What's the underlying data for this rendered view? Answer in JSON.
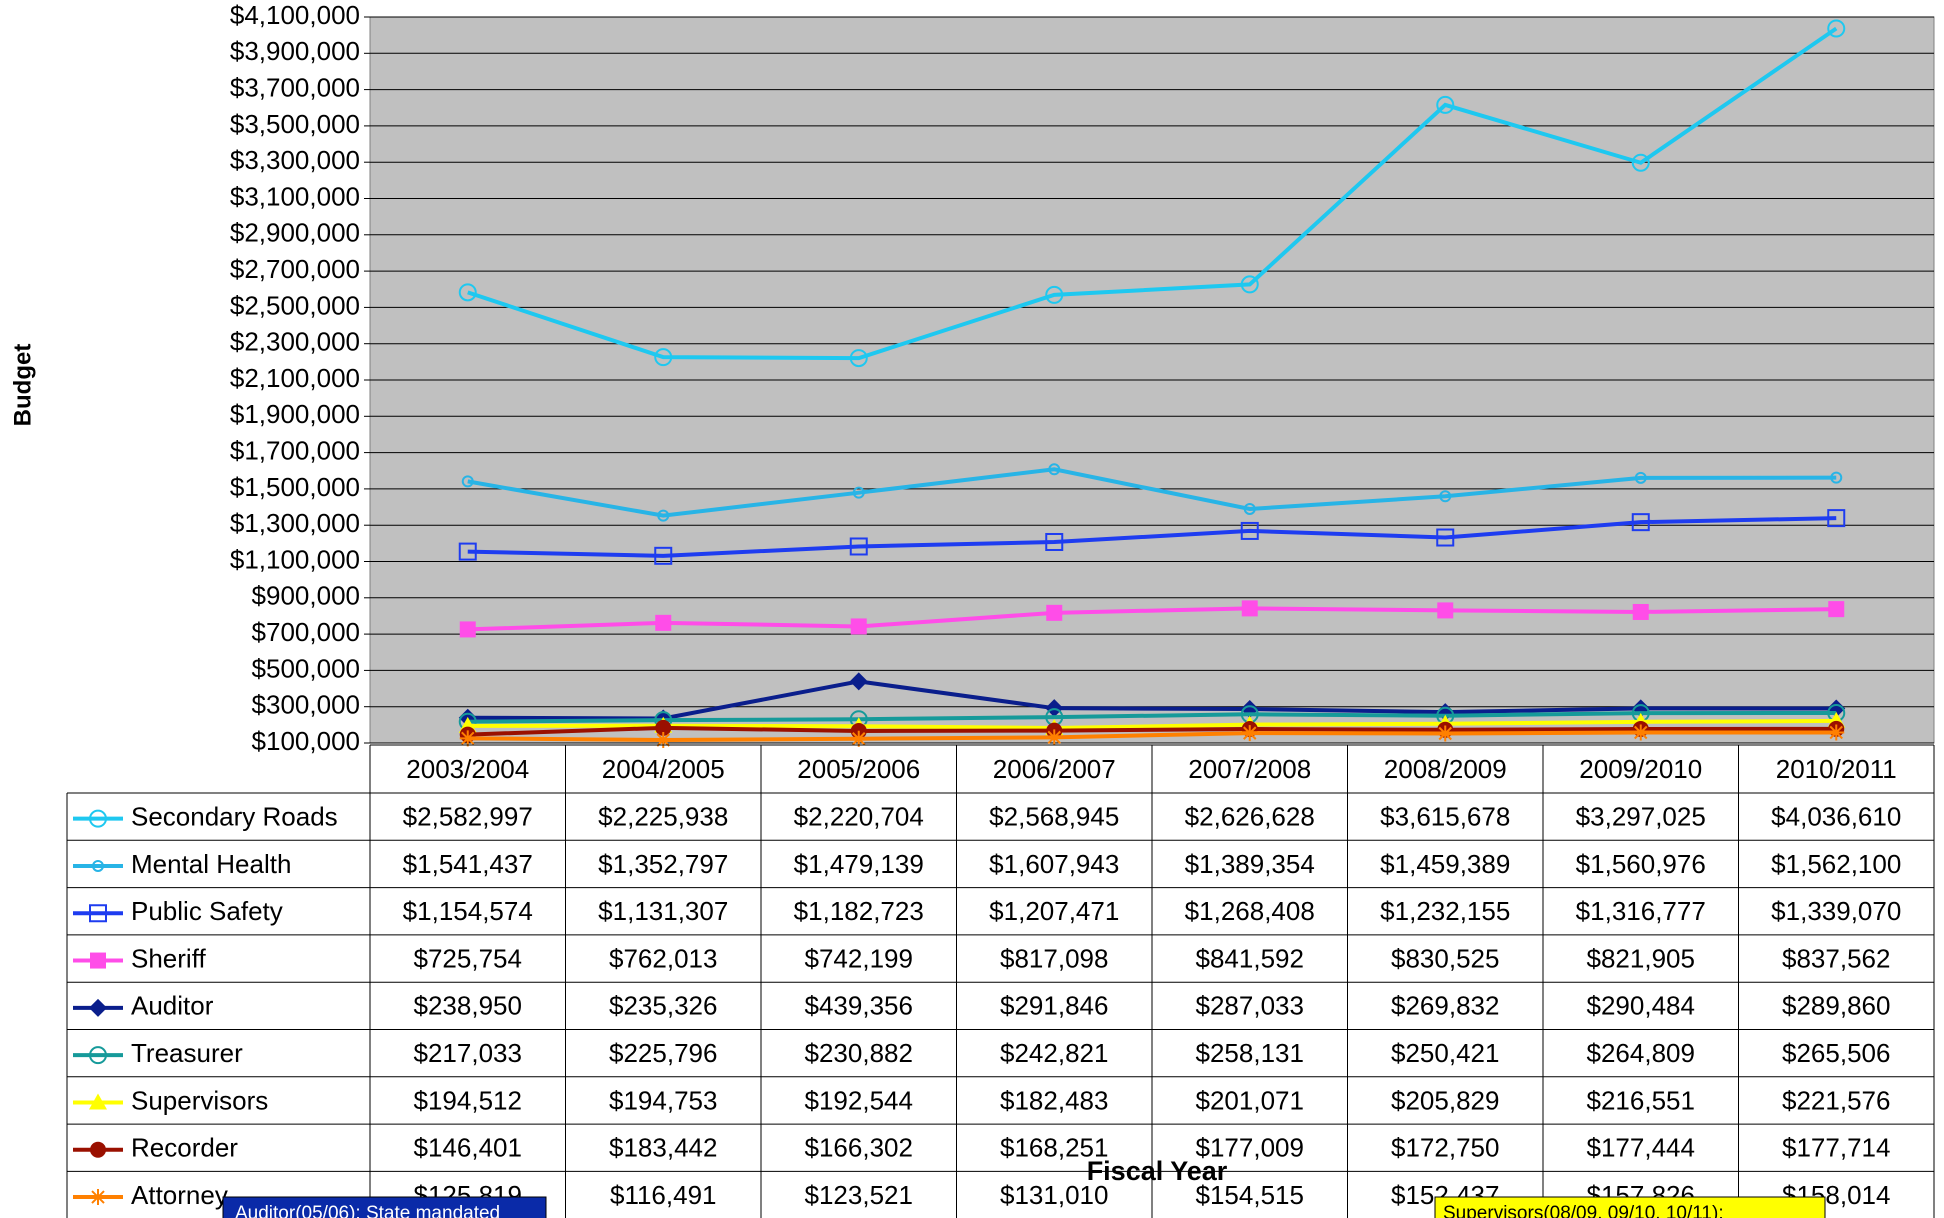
{
  "chart_data": {
    "type": "line",
    "x_label": "Fiscal Year",
    "y_label": "Budget",
    "categories": [
      "2003/2004",
      "2004/2005",
      "2005/2006",
      "2006/2007",
      "2007/2008",
      "2008/2009",
      "2009/2010",
      "2010/2011"
    ],
    "ylim": [
      100000,
      4100000
    ],
    "yticks": [
      {
        "value": 100000,
        "label": "$100,000"
      },
      {
        "value": 300000,
        "label": "$300,000"
      },
      {
        "value": 500000,
        "label": "$500,000"
      },
      {
        "value": 700000,
        "label": "$700,000"
      },
      {
        "value": 900000,
        "label": "$900,000"
      },
      {
        "value": 1100000,
        "label": "$1,100,000"
      },
      {
        "value": 1300000,
        "label": "$1,300,000"
      },
      {
        "value": 1500000,
        "label": "$1,500,000"
      },
      {
        "value": 1700000,
        "label": "$1,700,000"
      },
      {
        "value": 1900000,
        "label": "$1,900,000"
      },
      {
        "value": 2100000,
        "label": "$2,100,000"
      },
      {
        "value": 2300000,
        "label": "$2,300,000"
      },
      {
        "value": 2500000,
        "label": "$2,500,000"
      },
      {
        "value": 2700000,
        "label": "$2,700,000"
      },
      {
        "value": 2900000,
        "label": "$2,900,000"
      },
      {
        "value": 3100000,
        "label": "$3,100,000"
      },
      {
        "value": 3300000,
        "label": "$3,300,000"
      },
      {
        "value": 3500000,
        "label": "$3,500,000"
      },
      {
        "value": 3700000,
        "label": "$3,700,000"
      },
      {
        "value": 3900000,
        "label": "$3,900,000"
      },
      {
        "value": 4100000,
        "label": "$4,100,000"
      }
    ],
    "grid": true,
    "series": [
      {
        "name": "Secondary Roads",
        "color": "#1ec8f0",
        "marker": "circle-open",
        "values": [
          2582997,
          2225938,
          2220704,
          2568945,
          2626628,
          3615678,
          3297025,
          4036610
        ],
        "value_labels": [
          "$2,582,997",
          "$2,225,938",
          "$2,220,704",
          "$2,568,945",
          "$2,626,628",
          "$3,615,678",
          "$3,297,025",
          "$4,036,610"
        ]
      },
      {
        "name": "Mental Health",
        "color": "#28b4e6",
        "marker": "circle-small",
        "values": [
          1541437,
          1352797,
          1479139,
          1607943,
          1389354,
          1459389,
          1560976,
          1562100
        ],
        "value_labels": [
          "$1,541,437",
          "$1,352,797",
          "$1,479,139",
          "$1,607,943",
          "$1,389,354",
          "$1,459,389",
          "$1,560,976",
          "$1,562,100"
        ]
      },
      {
        "name": "Public Safety",
        "color": "#1e3cf0",
        "marker": "square-open",
        "values": [
          1154574,
          1131307,
          1182723,
          1207471,
          1268408,
          1232155,
          1316777,
          1339070
        ],
        "value_labels": [
          "$1,154,574",
          "$1,131,307",
          "$1,182,723",
          "$1,207,471",
          "$1,268,408",
          "$1,232,155",
          "$1,316,777",
          "$1,339,070"
        ]
      },
      {
        "name": "Sheriff",
        "color": "#ff4de8",
        "marker": "square",
        "values": [
          725754,
          762013,
          742199,
          817098,
          841592,
          830525,
          821905,
          837562
        ],
        "value_labels": [
          "$725,754",
          "$762,013",
          "$742,199",
          "$817,098",
          "$841,592",
          "$830,525",
          "$821,905",
          "$837,562"
        ]
      },
      {
        "name": "Auditor",
        "color": "#0a1e8c",
        "marker": "diamond",
        "values": [
          238950,
          235326,
          439356,
          291846,
          287033,
          269832,
          290484,
          289860
        ],
        "value_labels": [
          "$238,950",
          "$235,326",
          "$439,356",
          "$291,846",
          "$287,033",
          "$269,832",
          "$290,484",
          "$289,860"
        ]
      },
      {
        "name": "Treasurer",
        "color": "#169a9a",
        "marker": "circle-open",
        "values": [
          217033,
          225796,
          230882,
          242821,
          258131,
          250421,
          264809,
          265506
        ],
        "value_labels": [
          "$217,033",
          "$225,796",
          "$230,882",
          "$242,821",
          "$258,131",
          "$250,421",
          "$264,809",
          "$265,506"
        ]
      },
      {
        "name": "Supervisors",
        "color": "#ffff00",
        "marker": "triangle",
        "values": [
          194512,
          194753,
          192544,
          182483,
          201071,
          205829,
          216551,
          221576
        ],
        "value_labels": [
          "$194,512",
          "$194,753",
          "$192,544",
          "$182,483",
          "$201,071",
          "$205,829",
          "$216,551",
          "$221,576"
        ]
      },
      {
        "name": "Recorder",
        "color": "#9a1000",
        "marker": "circle",
        "values": [
          146401,
          183442,
          166302,
          168251,
          177009,
          172750,
          177444,
          177714
        ],
        "value_labels": [
          "$146,401",
          "$183,442",
          "$166,302",
          "$168,251",
          "$177,009",
          "$172,750",
          "$177,444",
          "$177,714"
        ]
      },
      {
        "name": "Attorney",
        "color": "#ff8000",
        "marker": "star",
        "values": [
          125819,
          116491,
          123521,
          131010,
          154515,
          152437,
          157826,
          158014
        ],
        "value_labels": [
          "$125,819",
          "$116,491",
          "$123,521",
          "$131,010",
          "$154,515",
          "$152,437",
          "$157,826",
          "$158,014"
        ]
      }
    ],
    "annotations": [
      "Auditor(05/06): State mandated",
      "Supervisors(08/09, 09/10, 10/11):"
    ]
  }
}
